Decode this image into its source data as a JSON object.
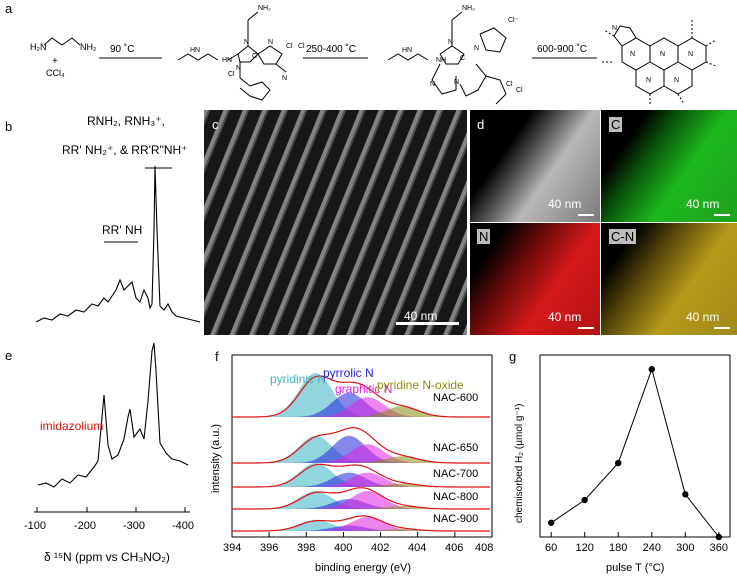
{
  "panels": {
    "a": "a",
    "b": "b",
    "c": "c",
    "d": "d",
    "e": "e",
    "f": "f",
    "g": "g"
  },
  "scheme": {
    "amine_a": "H₂N",
    "amine_b": "NH₂",
    "plus": "+",
    "ccl4": "CCl₄",
    "step1": "90 ˚C",
    "step2": "250-400 ˚C",
    "step3": "600-900 ˚C"
  },
  "nmr": {
    "label_line1": "RNH₂, RNH₃⁺,",
    "label_line2": "RR' NH₂⁺, & RR'R\"NH⁺",
    "label_rrnh": "RR' NH",
    "label_imid": "imidazolium",
    "x_ticks": [
      "-100",
      "-200",
      "-300",
      "-400"
    ],
    "x_label": "δ ¹⁵N (ppm vs CH₃NO₂)"
  },
  "tem": {
    "scale_c": "40 nm",
    "maps": [
      {
        "tag": "",
        "scale": "40 nm",
        "color": "#9a9a9a"
      },
      {
        "tag": "C",
        "scale": "40 nm",
        "color": "#1db81d"
      },
      {
        "tag": "N",
        "scale": "40 nm",
        "color": "#d61818"
      },
      {
        "tag": "C-N",
        "scale": "40 nm",
        "color": "#b59a1a"
      }
    ]
  },
  "xps": {
    "peaks": [
      {
        "name": "pyridinic N",
        "color": "#3bb3c3"
      },
      {
        "name": "pyrrolic N",
        "color": "#2222dd"
      },
      {
        "name": "graphitic N",
        "color": "#e020e0"
      },
      {
        "name": "pyridine N-oxide",
        "color": "#8a8a10"
      }
    ],
    "samples": [
      "NAC-600",
      "NAC-650",
      "NAC-700",
      "NAC-800",
      "NAC-900"
    ],
    "x_ticks": [
      "394",
      "396",
      "398",
      "400",
      "402",
      "404",
      "406",
      "408"
    ],
    "x_label": "binding energy (eV)",
    "y_label": "intensity (a.u.)"
  },
  "chart_data": {
    "type": "line",
    "x": [
      60,
      120,
      180,
      240,
      300,
      360
    ],
    "y": [
      0.5,
      1.3,
      2.6,
      5.9,
      1.5,
      0.0
    ],
    "x_ticks": [
      "60",
      "120",
      "180",
      "240",
      "300",
      "360"
    ],
    "xlabel": "pulse T (°C)",
    "ylabel": "chemisorbed H₂ (µmol g⁻¹)",
    "xlim": [
      40,
      380
    ],
    "ylim": [
      0,
      6.4
    ],
    "grid": false
  }
}
